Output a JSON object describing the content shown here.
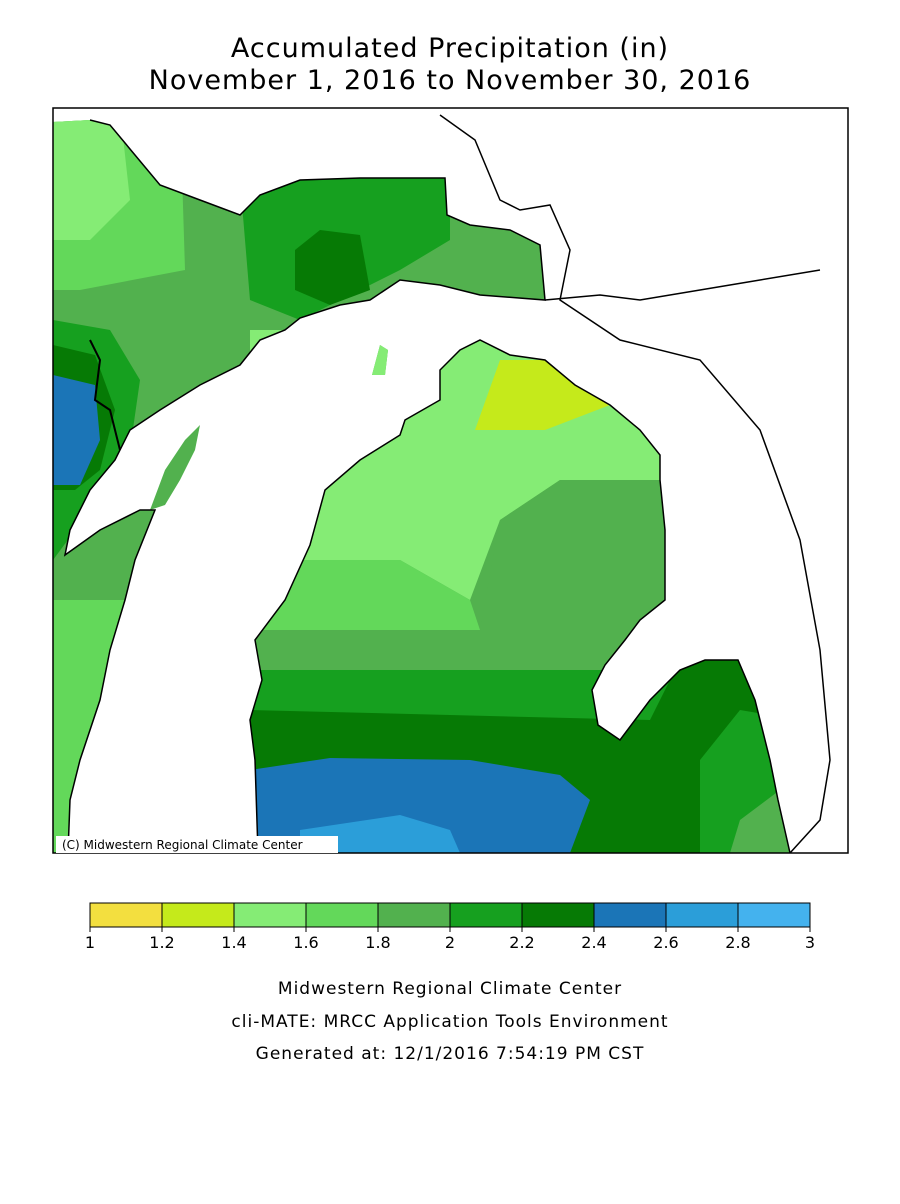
{
  "title": [
    "Accumulated Precipitation (in)",
    "November 1, 2016 to November 30, 2016"
  ],
  "copyright": "(C) Midwestern Regional Climate Center",
  "legend": {
    "ticks": [
      1,
      1.2,
      1.4,
      1.6,
      1.8,
      2,
      2.2,
      2.4,
      2.6,
      2.8,
      3
    ],
    "colors": [
      "#f3df3f",
      "#c5ea1b",
      "#85ec75",
      "#63d85a",
      "#52b14e",
      "#16a01f",
      "#067a05",
      "#1b75b7",
      "#2b9ed9",
      "#44b2ee"
    ]
  },
  "footer": [
    "Midwestern Regional Climate Center",
    "cli-MATE: MRCC Application Tools Environment",
    "Generated at: 12/1/2016 7:54:19 PM CST"
  ]
}
